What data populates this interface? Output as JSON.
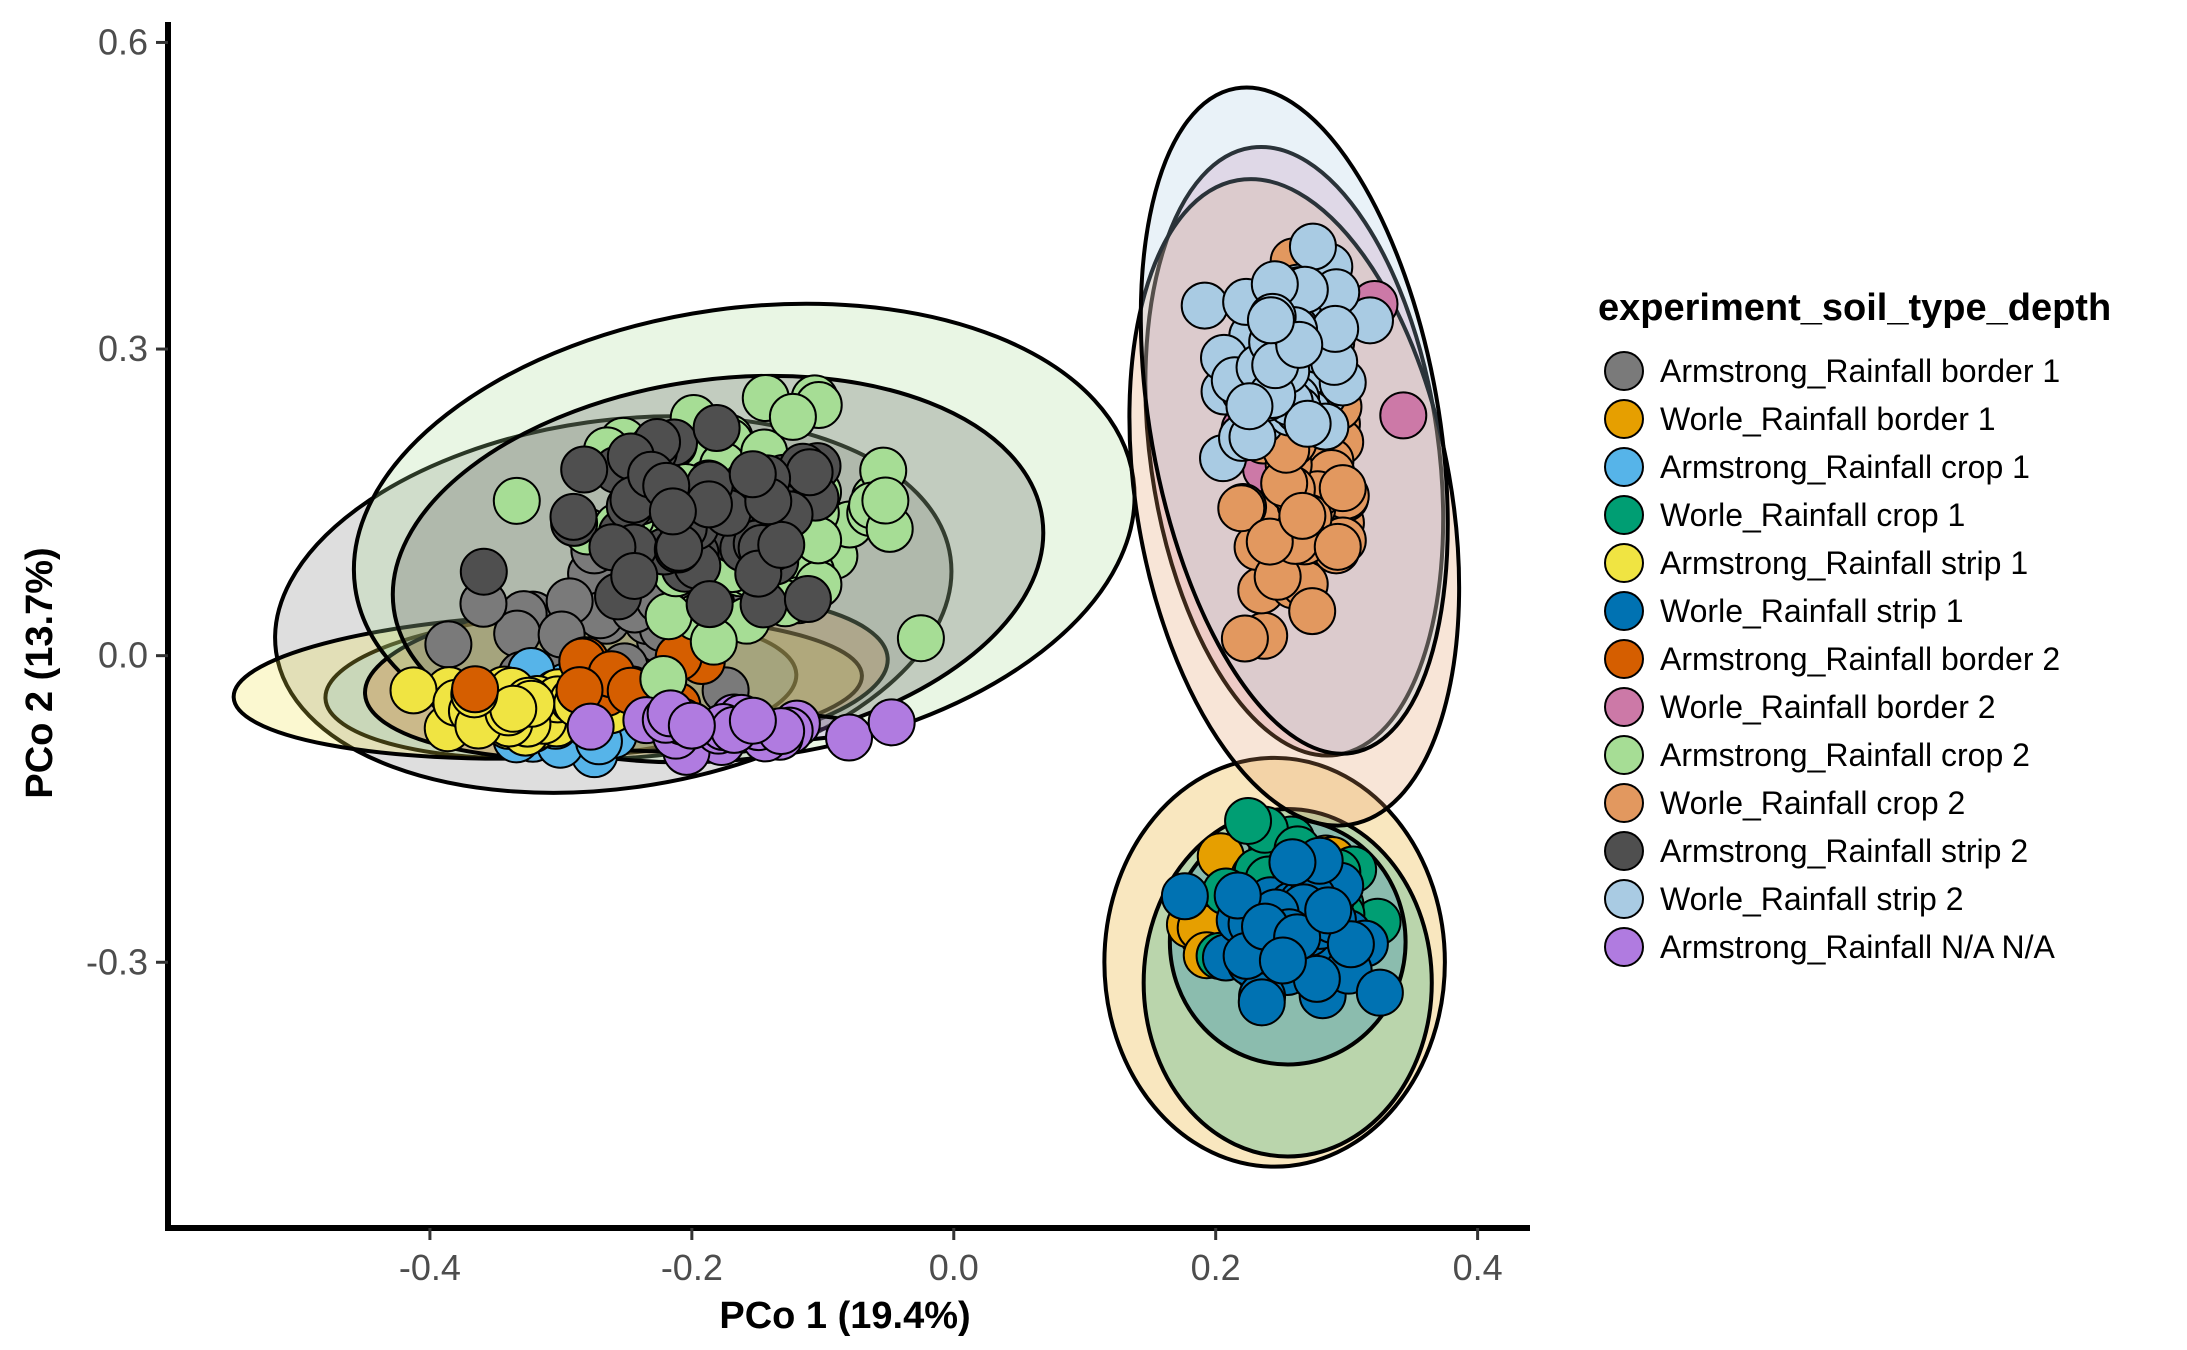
{
  "chart_data": {
    "type": "scatter",
    "xlabel": "PCo 1  (19.4%)",
    "ylabel": "PCo 2  (13.7%)",
    "xlim": [
      -0.6,
      0.44
    ],
    "ylim": [
      -0.56,
      0.62
    ],
    "x_ticks": [
      -0.4,
      -0.2,
      0.0,
      0.2,
      0.4
    ],
    "x_tick_labels": [
      "-0.4",
      "-0.2",
      "0.0",
      "0.2",
      "0.4"
    ],
    "y_ticks": [
      0.6,
      0.3,
      0.0,
      -0.3
    ],
    "y_tick_labels": [
      "0.6",
      "0.3",
      "0.0",
      "-0.3"
    ],
    "grid": false,
    "legend": {
      "title": "experiment_soil_type_depth",
      "position": "right"
    },
    "series": [
      {
        "name": "Armstrong_Rainfall border 1",
        "color": "#7a7a7a",
        "center": [
          -0.25,
          0.03
        ],
        "spread": [
          0.11,
          0.06
        ],
        "n": 30,
        "ellipse": {
          "cx": -0.26,
          "cy": 0.05,
          "rx": 0.26,
          "ry": 0.18,
          "angle": -8
        }
      },
      {
        "name": "Worle_Rainfall border 1",
        "color": "#E69F00",
        "center": [
          0.24,
          -0.26
        ],
        "spread": [
          0.05,
          0.07
        ],
        "n": 18,
        "ellipse": {
          "cx": 0.245,
          "cy": -0.3,
          "rx": 0.13,
          "ry": 0.2,
          "angle": 0
        }
      },
      {
        "name": "Armstrong_Rainfall crop 1",
        "color": "#56B4E9",
        "center": [
          -0.3,
          -0.06
        ],
        "spread": [
          0.06,
          0.03
        ],
        "n": 30,
        "ellipse": {
          "cx": -0.3,
          "cy": -0.03,
          "rx": 0.18,
          "ry": 0.07,
          "angle": -3
        }
      },
      {
        "name": "Worle_Rainfall crop 1",
        "color": "#009E73",
        "center": [
          0.26,
          -0.24
        ],
        "spread": [
          0.05,
          0.06
        ],
        "n": 30,
        "ellipse": {
          "cx": 0.255,
          "cy": -0.32,
          "rx": 0.11,
          "ry": 0.17,
          "angle": 0
        }
      },
      {
        "name": "Armstrong_Rainfall strip 1",
        "color": "#F0E442",
        "center": [
          -0.33,
          -0.05
        ],
        "spread": [
          0.06,
          0.025
        ],
        "n": 45,
        "ellipse": {
          "cx": -0.31,
          "cy": -0.03,
          "rx": 0.24,
          "ry": 0.07,
          "angle": -2
        }
      },
      {
        "name": "Worle_Rainfall strip 1",
        "color": "#0072B2",
        "center": [
          0.26,
          -0.27
        ],
        "spread": [
          0.04,
          0.05
        ],
        "n": 60,
        "ellipse": {
          "cx": 0.255,
          "cy": -0.28,
          "rx": 0.09,
          "ry": 0.12,
          "angle": 0
        }
      },
      {
        "name": "Armstrong_Rainfall border 2",
        "color": "#D55E00",
        "center": [
          -0.28,
          -0.02
        ],
        "spread": [
          0.07,
          0.03
        ],
        "n": 10,
        "ellipse": {
          "cx": -0.25,
          "cy": -0.02,
          "rx": 0.2,
          "ry": 0.08,
          "angle": -4
        }
      },
      {
        "name": "Worle_Rainfall border 2",
        "color": "#CC79A7",
        "center": [
          0.26,
          0.25
        ],
        "spread": [
          0.05,
          0.09
        ],
        "n": 16,
        "ellipse": {
          "cx": 0.26,
          "cy": 0.2,
          "rx": 0.11,
          "ry": 0.3,
          "angle": -8
        }
      },
      {
        "name": "Armstrong_Rainfall crop 2",
        "color": "#a6dd95",
        "center": [
          -0.16,
          0.14
        ],
        "spread": [
          0.1,
          0.08
        ],
        "n": 80,
        "ellipse": {
          "cx": -0.16,
          "cy": 0.12,
          "rx": 0.3,
          "ry": 0.22,
          "angle": -8
        }
      },
      {
        "name": "Worle_Rainfall crop 2",
        "color": "#E2985F",
        "center": [
          0.27,
          0.15
        ],
        "spread": [
          0.04,
          0.12
        ],
        "n": 60,
        "ellipse": {
          "cx": 0.26,
          "cy": 0.15,
          "rx": 0.12,
          "ry": 0.32,
          "angle": -10
        }
      },
      {
        "name": "Armstrong_Rainfall strip 2",
        "color": "#4f4f4f",
        "center": [
          -0.2,
          0.12
        ],
        "spread": [
          0.1,
          0.07
        ],
        "n": 60,
        "ellipse": {
          "cx": -0.18,
          "cy": 0.09,
          "rx": 0.25,
          "ry": 0.18,
          "angle": -8
        }
      },
      {
        "name": "Worle_Rainfall strip 2",
        "color": "#a9cbe3",
        "center": [
          0.26,
          0.3
        ],
        "spread": [
          0.04,
          0.07
        ],
        "n": 70,
        "ellipse": {
          "cx": 0.26,
          "cy": 0.23,
          "rx": 0.11,
          "ry": 0.33,
          "angle": -10
        }
      },
      {
        "name": "Armstrong_Rainfall N/A N/A",
        "color": "#B07BE0",
        "center": [
          -0.18,
          -0.07
        ],
        "spread": [
          0.07,
          0.01
        ],
        "n": 30,
        "ellipse": {
          "cx": -0.17,
          "cy": -0.07,
          "rx": 0.1,
          "ry": 0.015,
          "angle": 0
        }
      }
    ]
  }
}
